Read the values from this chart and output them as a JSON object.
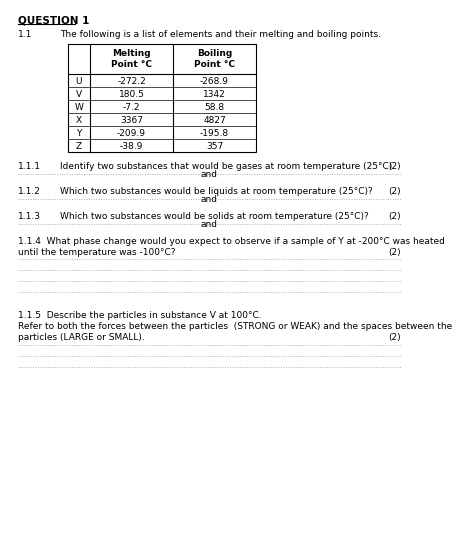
{
  "title": "QUESTION 1",
  "section": "1.1",
  "section_text": "The following is a list of elements and their melting and boiling points.",
  "table_rows": [
    [
      "U",
      "-272.2",
      "-268.9"
    ],
    [
      "V",
      "180.5",
      "1342"
    ],
    [
      "W",
      "-7.2",
      "58.8"
    ],
    [
      "X",
      "3367",
      "4827"
    ],
    [
      "Y",
      "-209.9",
      "-195.8"
    ],
    [
      "Z",
      "-38.9",
      "357"
    ]
  ],
  "q111_num": "1.1.1",
  "q111_text": "Identify two substances that would be gases at room temperature (25°C).",
  "q111_marks": "(2)",
  "q112_num": "1.1.2",
  "q112_text": "Which two substances would be liquids at room temperature (25°C)?",
  "q112_marks": "(2)",
  "q113_num": "1.1.3",
  "q113_text": "Which two substances would be solids at room temperature (25°C)?",
  "q113_marks": "(2)",
  "q114_num": "1.1.4",
  "q114_line1": "1.1.4  What phase change would you expect to observe if a sample of Y at -200°C was heated",
  "q114_line2": "until the temperature was -100°C?",
  "q114_marks": "(2)",
  "q115_num": "1.1.5",
  "q115_text": "1.1.5  Describe the particles in substance V at 100°C.",
  "q115_subline1": "Refer to both the forces between the particles  (STRONG or WEAK) and the spaces between the",
  "q115_subline2": "particles (LARGE or SMALL).",
  "q115_marks": "(2)",
  "bg_color": "#ffffff",
  "text_color": "#000000",
  "dot_color": "#999999",
  "font_size": 6.5,
  "title_font_size": 7.5
}
